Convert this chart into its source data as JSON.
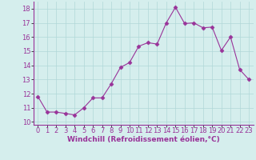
{
  "x": [
    0,
    1,
    2,
    3,
    4,
    5,
    6,
    7,
    8,
    9,
    10,
    11,
    12,
    13,
    14,
    15,
    16,
    17,
    18,
    19,
    20,
    21,
    22,
    23
  ],
  "y": [
    11.8,
    10.7,
    10.7,
    10.6,
    10.5,
    11.0,
    11.7,
    11.7,
    12.7,
    13.85,
    14.2,
    15.35,
    15.6,
    15.5,
    17.0,
    18.1,
    16.95,
    17.0,
    16.65,
    16.7,
    15.05,
    16.0,
    13.7,
    13.0
  ],
  "line_color": "#993399",
  "marker": "D",
  "marker_size": 2.5,
  "bg_color": "#d5eeed",
  "grid_color": "#b0d8d8",
  "xlabel": "Windchill (Refroidissement éolien,°C)",
  "ylim": [
    9.8,
    18.5
  ],
  "xlim": [
    -0.5,
    23.5
  ],
  "yticks": [
    10,
    11,
    12,
    13,
    14,
    15,
    16,
    17,
    18
  ],
  "xticks": [
    0,
    1,
    2,
    3,
    4,
    5,
    6,
    7,
    8,
    9,
    10,
    11,
    12,
    13,
    14,
    15,
    16,
    17,
    18,
    19,
    20,
    21,
    22,
    23
  ],
  "tick_fontsize": 6,
  "xlabel_fontsize": 6.5,
  "spine_color": "#888888",
  "linewidth": 0.8
}
